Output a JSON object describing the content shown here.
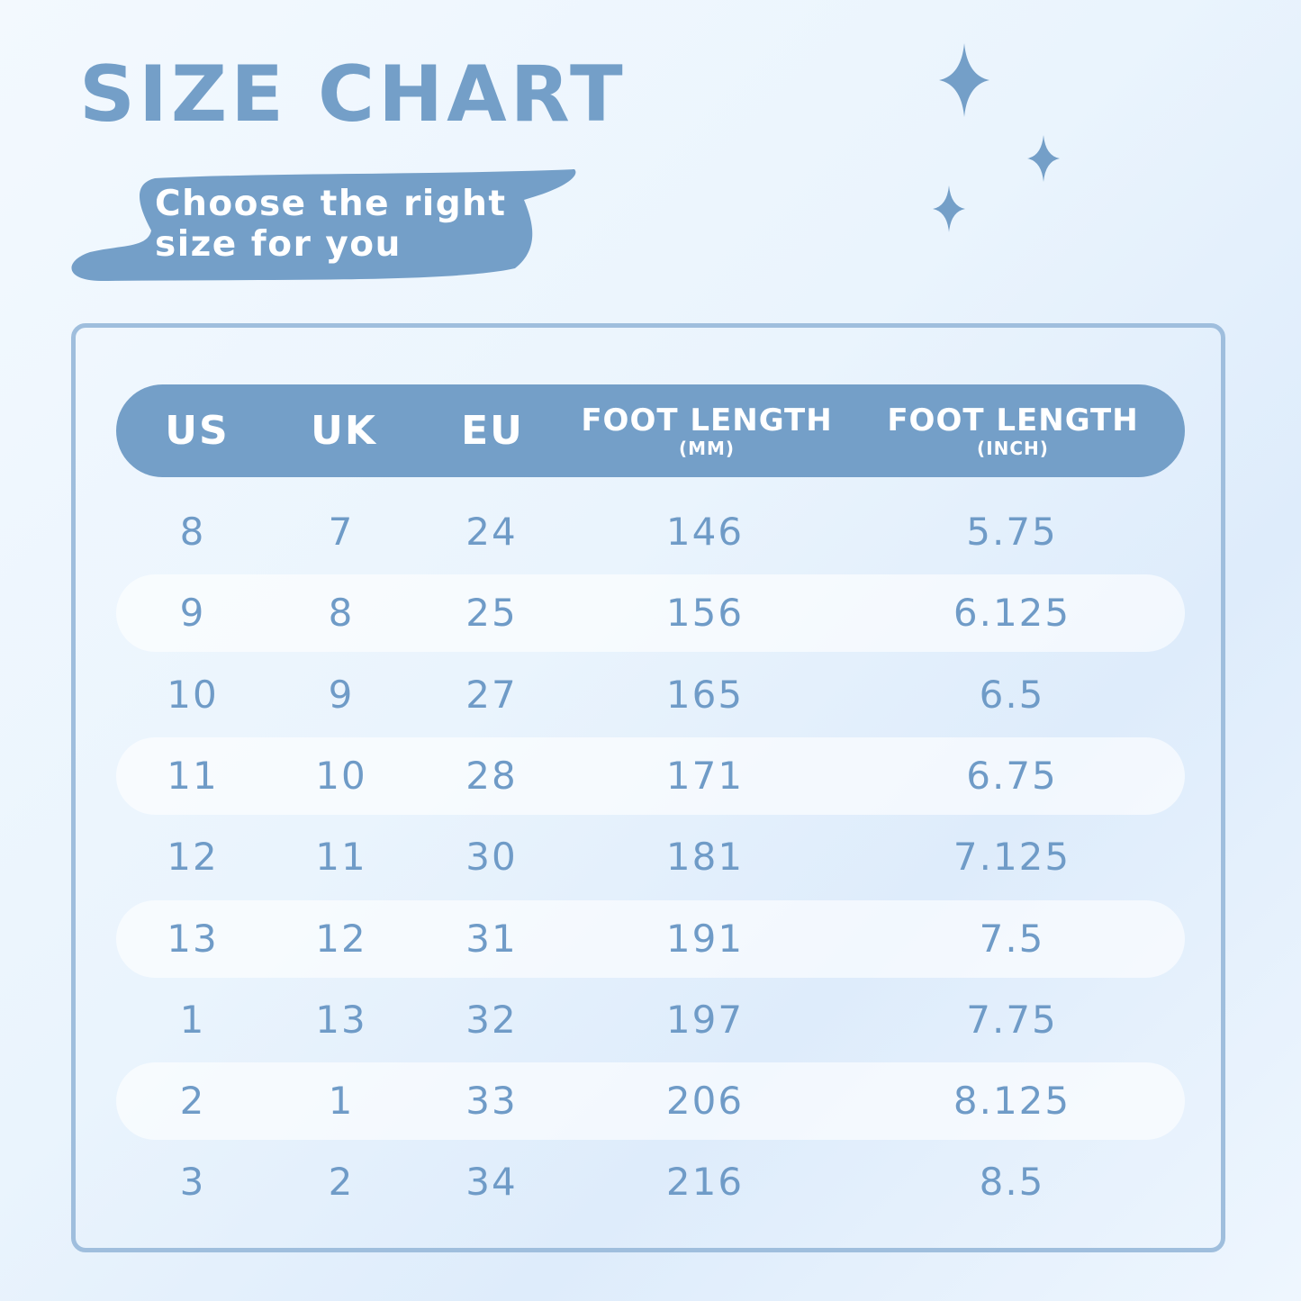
{
  "header": {
    "title": "SIZE CHART",
    "subtitle_line1": "Choose the right",
    "subtitle_line2": "size for you"
  },
  "decorations": [
    "sparkle-star-icon",
    "sparkle-star-icon",
    "sparkle-star-icon"
  ],
  "colors": {
    "accent": "#749fc8",
    "panel_border": "#9fbedd",
    "text_values": "#6f9bc7",
    "background": "#eaf4fd"
  },
  "table": {
    "columns": [
      {
        "label": "US",
        "sublabel": ""
      },
      {
        "label": "UK",
        "sublabel": ""
      },
      {
        "label": "EU",
        "sublabel": ""
      },
      {
        "label": "FOOT LENGTH",
        "sublabel": "(MM)"
      },
      {
        "label": "FOOT LENGTH",
        "sublabel": "(INCH)"
      }
    ],
    "rows": [
      [
        "8",
        "7",
        "24",
        "146",
        "5.75"
      ],
      [
        "9",
        "8",
        "25",
        "156",
        "6.125"
      ],
      [
        "10",
        "9",
        "27",
        "165",
        "6.5"
      ],
      [
        "11",
        "10",
        "28",
        "171",
        "6.75"
      ],
      [
        "12",
        "11",
        "30",
        "181",
        "7.125"
      ],
      [
        "13",
        "12",
        "31",
        "191",
        "7.5"
      ],
      [
        "1",
        "13",
        "32",
        "197",
        "7.75"
      ],
      [
        "2",
        "1",
        "33",
        "206",
        "8.125"
      ],
      [
        "3",
        "2",
        "34",
        "216",
        "8.5"
      ]
    ]
  }
}
